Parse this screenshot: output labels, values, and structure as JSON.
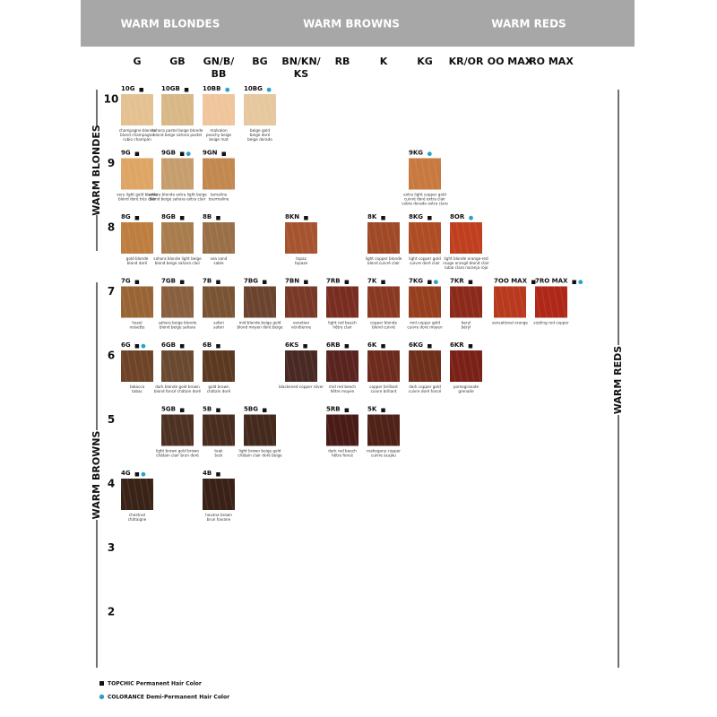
{
  "header": {
    "sections": [
      "WARM BLONDES",
      "WARM BROWNS",
      "WARM REDS"
    ]
  },
  "columns": [
    [
      "G"
    ],
    [
      "GB"
    ],
    [
      "GN/B/",
      "BB"
    ],
    [
      "BG"
    ],
    [
      "BN/KN/",
      "KS"
    ],
    [
      "RB"
    ],
    [
      "K"
    ],
    [
      "KG"
    ],
    [
      "KR/OR"
    ],
    [
      "OO MAX"
    ],
    [
      "RO MAX"
    ]
  ],
  "side_labels": {
    "left": [
      "WARM BLONDES",
      "WARM BROWNS"
    ],
    "right": "WARM REDS"
  },
  "levels": [
    {
      "label": "10",
      "cells": [
        {
          "code": "10G",
          "color": "#e4c191",
          "permanent": true,
          "demi": false,
          "caption": [
            "champagne blonde",
            "blond champagne",
            "rubio champán"
          ]
        },
        {
          "code": "10GB",
          "color": "#d8b886",
          "permanent": true,
          "demi": false,
          "caption": [
            "sahara pastel beige blonde",
            "blond beige sahara pastel"
          ]
        },
        {
          "code": "10BB",
          "color": "#efc59c",
          "permanent": false,
          "demi": true,
          "caption": [
            "malvalon",
            "peachy beige",
            "beige mat"
          ]
        },
        {
          "code": "10BG",
          "color": "#e6c89e",
          "permanent": false,
          "demi": true,
          "caption": [
            "beige gold",
            "beige doré",
            "beige dorado"
          ]
        }
      ]
    },
    {
      "label": "9",
      "cells": [
        {
          "code": "9G",
          "color": "#dea565",
          "permanent": true,
          "demi": false,
          "caption": [
            "very light gold blonde",
            "blond doré très clair"
          ]
        },
        {
          "code": "9GB",
          "color": "#c69e6e",
          "permanent": true,
          "demi": true,
          "caption": [
            "sahara blonde extra light beige",
            "blond beige sahara extra clair"
          ]
        },
        {
          "code": "9GN",
          "color": "#c2884f",
          "permanent": true,
          "demi": false,
          "caption": [
            "tamaline",
            "tourmaline"
          ]
        },
        null,
        null,
        null,
        null,
        {
          "code": "9KG",
          "color": "#c8793f",
          "permanent": false,
          "demi": true,
          "caption": [
            "extra light copper gold",
            "cuivré doré extra clair",
            "cobre dorado extra claro"
          ]
        }
      ]
    },
    {
      "label": "8",
      "cells": [
        {
          "code": "8G",
          "color": "#bd7e3f",
          "permanent": true,
          "demi": false,
          "caption": [
            "gold blonde",
            "blond doré"
          ]
        },
        {
          "code": "8GB",
          "color": "#a87c4c",
          "permanent": true,
          "demi": false,
          "caption": [
            "sahara blonde light beige",
            "blond beige sahara clair"
          ]
        },
        {
          "code": "8B",
          "color": "#996f47",
          "permanent": true,
          "demi": false,
          "caption": [
            "sea sand",
            "sable"
          ]
        },
        null,
        {
          "code": "8KN",
          "color": "#a6542f",
          "permanent": true,
          "demi": false,
          "caption": [
            "topaz",
            "topaze"
          ]
        },
        null,
        {
          "code": "8K",
          "color": "#9f4927",
          "permanent": true,
          "demi": false,
          "caption": [
            "light copper blonde",
            "blond cuivré clair"
          ]
        },
        {
          "code": "8KG",
          "color": "#ae4c24",
          "permanent": true,
          "demi": false,
          "caption": [
            "light copper gold",
            "cuivre doré clair"
          ]
        },
        {
          "code": "8OR",
          "color": "#bf3f1f",
          "permanent": false,
          "demi": true,
          "caption": [
            "light blonde orange-red",
            "rouge orangé blond clair",
            "rubio claro naranja rojo"
          ]
        }
      ]
    },
    {
      "label": "7",
      "cells": [
        {
          "code": "7G",
          "color": "#996435",
          "permanent": true,
          "demi": false,
          "caption": [
            "hazel",
            "noisette"
          ]
        },
        {
          "code": "7GB",
          "color": "#885f3f",
          "permanent": true,
          "demi": false,
          "caption": [
            "sahara beige blonde",
            "blond beige sahara"
          ]
        },
        {
          "code": "7B",
          "color": "#795434",
          "permanent": true,
          "demi": false,
          "caption": [
            "safari",
            "safari"
          ]
        },
        {
          "code": "7BG",
          "color": "#6b442f",
          "permanent": true,
          "demi": false,
          "caption": [
            "mid blonde beige gold",
            "blond moyen doré beige"
          ]
        },
        {
          "code": "7BN",
          "color": "#793927",
          "permanent": true,
          "demi": false,
          "caption": [
            "venetian",
            "vénitienne"
          ]
        },
        {
          "code": "7RB",
          "color": "#792d21",
          "permanent": true,
          "demi": false,
          "caption": [
            "light red beech",
            "hêtre clair"
          ]
        },
        {
          "code": "7K",
          "color": "#893921",
          "permanent": true,
          "demi": false,
          "caption": [
            "copper blonde",
            "blond cuivré"
          ]
        },
        {
          "code": "7KG",
          "color": "#953f1e",
          "permanent": true,
          "demi": true,
          "caption": [
            "mid copper gold",
            "cuivre doré moyen"
          ]
        },
        {
          "code": "7KR",
          "color": "#8b291b",
          "permanent": true,
          "demi": false,
          "caption": [
            "beryl",
            "béryl"
          ]
        },
        {
          "code": "7OO MAX",
          "color": "#b8391d",
          "permanent": true,
          "demi": false,
          "caption": [
            "sensational orange"
          ]
        },
        {
          "code": "7RO MAX",
          "color": "#ae2717",
          "permanent": true,
          "demi": true,
          "caption": [
            "sizzling red copper"
          ]
        }
      ]
    },
    {
      "label": "6",
      "cells": [
        {
          "code": "6G",
          "color": "#6d4427",
          "permanent": true,
          "demi": true,
          "caption": [
            "tabacco",
            "tabac"
          ]
        },
        {
          "code": "6GB",
          "color": "#69492f",
          "permanent": true,
          "demi": false,
          "caption": [
            "dark blonde gold brown",
            "blond foncé châtain doré"
          ]
        },
        {
          "code": "6B",
          "color": "#5b3921",
          "permanent": true,
          "demi": false,
          "caption": [
            "gold brown",
            "châtain doré"
          ]
        },
        null,
        {
          "code": "6KS",
          "color": "#492923",
          "permanent": true,
          "demi": false,
          "caption": [
            "blackened copper silver"
          ]
        },
        {
          "code": "6RB",
          "color": "#59231f",
          "permanent": true,
          "demi": false,
          "caption": [
            "mid red beech",
            "hêtre moyen"
          ]
        },
        {
          "code": "6K",
          "color": "#6d2b1d",
          "permanent": true,
          "demi": false,
          "caption": [
            "copper brilliant",
            "cuivre brillant"
          ]
        },
        {
          "code": "6KG",
          "color": "#6f2f1b",
          "permanent": true,
          "demi": false,
          "caption": [
            "dark copper gold",
            "cuivre doré foncé"
          ]
        },
        {
          "code": "6KR",
          "color": "#792117",
          "permanent": true,
          "demi": false,
          "caption": [
            "pomegranate",
            "grenade"
          ]
        }
      ]
    },
    {
      "label": "5",
      "cells": [
        null,
        {
          "code": "5GB",
          "color": "#4d3223",
          "permanent": true,
          "demi": false,
          "caption": [
            "light brown gold brown",
            "châtain clair brun doré"
          ]
        },
        {
          "code": "5B",
          "color": "#492d1f",
          "permanent": true,
          "demi": false,
          "caption": [
            "teak",
            "teck"
          ]
        },
        {
          "code": "5BG",
          "color": "#44291d",
          "permanent": true,
          "demi": false,
          "caption": [
            "light brown beige gold",
            "châtain clair doré beige"
          ]
        },
        null,
        {
          "code": "5RB",
          "color": "#491b17",
          "permanent": true,
          "demi": false,
          "caption": [
            "dark red beech",
            "hêtre foncé"
          ]
        },
        {
          "code": "5K",
          "color": "#4f2117",
          "permanent": true,
          "demi": false,
          "caption": [
            "mahogany copper",
            "cuivre acajou"
          ]
        }
      ]
    },
    {
      "label": "4",
      "cells": [
        {
          "code": "4G",
          "color": "#392317",
          "permanent": true,
          "demi": true,
          "caption": [
            "chestnut",
            "châtaigne"
          ]
        },
        null,
        {
          "code": "4B",
          "color": "#392117",
          "permanent": true,
          "demi": false,
          "caption": [
            "havana brown",
            "brun havane"
          ]
        }
      ]
    },
    {
      "label": "3",
      "cells": []
    },
    {
      "label": "2",
      "cells": []
    }
  ],
  "legend": {
    "permanent": "TOPCHIC Permanent Hair Color",
    "demi": "COLORANCE Demi-Permanent Hair Color"
  }
}
